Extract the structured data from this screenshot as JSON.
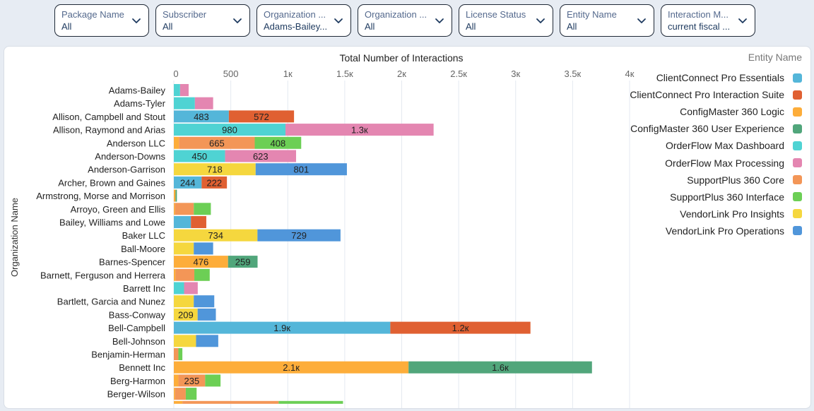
{
  "filters": [
    {
      "label": "Package Name",
      "value": "All"
    },
    {
      "label": "Subscriber",
      "value": "All"
    },
    {
      "label": "Organization ...",
      "value": "Adams-Bailey..."
    },
    {
      "label": "Organization ...",
      "value": "All"
    },
    {
      "label": "License Status",
      "value": "All"
    },
    {
      "label": "Entity Name",
      "value": "All"
    },
    {
      "label": "Interaction M...",
      "value": "current fiscal ..."
    }
  ],
  "chart_data": {
    "type": "bar",
    "orientation": "horizontal",
    "stacked": true,
    "title": "Total Number of Interactions",
    "xlabel": "Total Number of Interactions",
    "ylabel": "Organization Name",
    "xlim": [
      0,
      4000
    ],
    "x_ticks": [
      0,
      500,
      1000,
      1500,
      2000,
      2500,
      3000,
      3500,
      4000
    ],
    "x_tick_labels": [
      "0",
      "500",
      "1к",
      "1.5к",
      "2к",
      "2.5к",
      "3к",
      "3.5к",
      "4к"
    ],
    "grid": true,
    "legend_title": "Entity Name",
    "legend_position": "right",
    "series": [
      {
        "name": "ClientConnect Pro Essentials",
        "color": "#54b6d9"
      },
      {
        "name": "ClientConnect Pro Interaction Suite",
        "color": "#e06032"
      },
      {
        "name": "ConfigMaster 360 Logic",
        "color": "#fdad3a"
      },
      {
        "name": "ConfigMaster 360 User Experience",
        "color": "#51a67b"
      },
      {
        "name": "OrderFlow Max Dashboard",
        "color": "#4fd3d3"
      },
      {
        "name": "OrderFlow Max Processing",
        "color": "#e486b1"
      },
      {
        "name": "SupportPlus 360 Core",
        "color": "#f39657"
      },
      {
        "name": "SupportPlus 360 Interface",
        "color": "#6ccf55"
      },
      {
        "name": "VendorLink Pro Insights",
        "color": "#f5d73e"
      },
      {
        "name": "VendorLink Pro Operations",
        "color": "#5096da"
      }
    ],
    "categories": [
      "Adams-Bailey",
      "Adams-Tyler",
      "Allison, Campbell and Stout",
      "Allison, Raymond and Arias",
      "Anderson LLC",
      "Anderson-Downs",
      "Anderson-Garrison",
      "Archer, Brown and Gaines",
      "Armstrong, Morse and Morrison",
      "Arroyo, Green and Ellis",
      "Bailey, Williams and Lowe",
      "Baker LLC",
      "Ball-Moore",
      "Barnes-Spencer",
      "Barnett, Ferguson and Herrera",
      "Barrett Inc",
      "Bartlett, Garcia and Nunez",
      "Bass-Conway",
      "Bell-Campbell",
      "Bell-Johnson",
      "Benjamin-Herman",
      "Bennett Inc",
      "Berg-Harmon",
      "Berger-Wilson",
      ""
    ],
    "rows": [
      {
        "segments": [
          {
            "s": 4,
            "v": 55
          },
          {
            "s": 5,
            "v": 75
          }
        ]
      },
      {
        "segments": [
          {
            "s": 4,
            "v": 185
          },
          {
            "s": 5,
            "v": 160
          }
        ]
      },
      {
        "segments": [
          {
            "s": 0,
            "v": 483,
            "label": "483"
          },
          {
            "s": 1,
            "v": 572,
            "label": "572"
          }
        ]
      },
      {
        "segments": [
          {
            "s": 4,
            "v": 980,
            "label": "980"
          },
          {
            "s": 5,
            "v": 1300,
            "label": "1.3к"
          }
        ]
      },
      {
        "segments": [
          {
            "s": 2,
            "v": 45
          },
          {
            "s": 6,
            "v": 665,
            "label": "665"
          },
          {
            "s": 7,
            "v": 408,
            "label": "408"
          }
        ]
      },
      {
        "segments": [
          {
            "s": 4,
            "v": 450,
            "label": "450"
          },
          {
            "s": 5,
            "v": 623,
            "label": "623"
          }
        ]
      },
      {
        "segments": [
          {
            "s": 8,
            "v": 718,
            "label": "718"
          },
          {
            "s": 9,
            "v": 801,
            "label": "801"
          }
        ]
      },
      {
        "segments": [
          {
            "s": 0,
            "v": 244,
            "label": "244"
          },
          {
            "s": 1,
            "v": 222,
            "label": "222"
          }
        ]
      },
      {
        "segments": [
          {
            "s": 2,
            "v": 15
          },
          {
            "s": 3,
            "v": 12
          }
        ]
      },
      {
        "segments": [
          {
            "s": 2,
            "v": 10
          },
          {
            "s": 6,
            "v": 165
          },
          {
            "s": 7,
            "v": 150
          }
        ]
      },
      {
        "segments": [
          {
            "s": 0,
            "v": 150
          },
          {
            "s": 1,
            "v": 135
          }
        ]
      },
      {
        "segments": [
          {
            "s": 8,
            "v": 734,
            "label": "734"
          },
          {
            "s": 9,
            "v": 729,
            "label": "729"
          }
        ]
      },
      {
        "segments": [
          {
            "s": 8,
            "v": 175
          },
          {
            "s": 9,
            "v": 170
          }
        ]
      },
      {
        "segments": [
          {
            "s": 2,
            "v": 476,
            "label": "476"
          },
          {
            "s": 3,
            "v": 259,
            "label": "259"
          }
        ]
      },
      {
        "segments": [
          {
            "s": 2,
            "v": 15
          },
          {
            "s": 6,
            "v": 165
          },
          {
            "s": 7,
            "v": 135
          }
        ]
      },
      {
        "segments": [
          {
            "s": 4,
            "v": 90
          },
          {
            "s": 5,
            "v": 120
          }
        ]
      },
      {
        "segments": [
          {
            "s": 8,
            "v": 175
          },
          {
            "s": 9,
            "v": 180
          }
        ]
      },
      {
        "segments": [
          {
            "s": 8,
            "v": 209,
            "label": "209"
          },
          {
            "s": 9,
            "v": 160
          }
        ]
      },
      {
        "segments": [
          {
            "s": 0,
            "v": 1900,
            "label": "1.9к"
          },
          {
            "s": 1,
            "v": 1230,
            "label": "1.2к"
          }
        ]
      },
      {
        "segments": [
          {
            "s": 8,
            "v": 195
          },
          {
            "s": 9,
            "v": 195
          }
        ]
      },
      {
        "segments": [
          {
            "s": 6,
            "v": 40
          },
          {
            "s": 7,
            "v": 35
          }
        ]
      },
      {
        "segments": [
          {
            "s": 2,
            "v": 2060,
            "label": "2.1к"
          },
          {
            "s": 3,
            "v": 1610,
            "label": "1.6к"
          }
        ]
      },
      {
        "segments": [
          {
            "s": 2,
            "v": 40
          },
          {
            "s": 6,
            "v": 235,
            "label": "235"
          },
          {
            "s": 7,
            "v": 135
          }
        ]
      },
      {
        "segments": [
          {
            "s": 2,
            "v": 10
          },
          {
            "s": 6,
            "v": 95
          },
          {
            "s": 7,
            "v": 95
          }
        ]
      },
      {
        "segments": [
          {
            "s": 2,
            "v": 75
          },
          {
            "s": 6,
            "v": 845
          },
          {
            "s": 7,
            "v": 565
          }
        ]
      }
    ]
  }
}
